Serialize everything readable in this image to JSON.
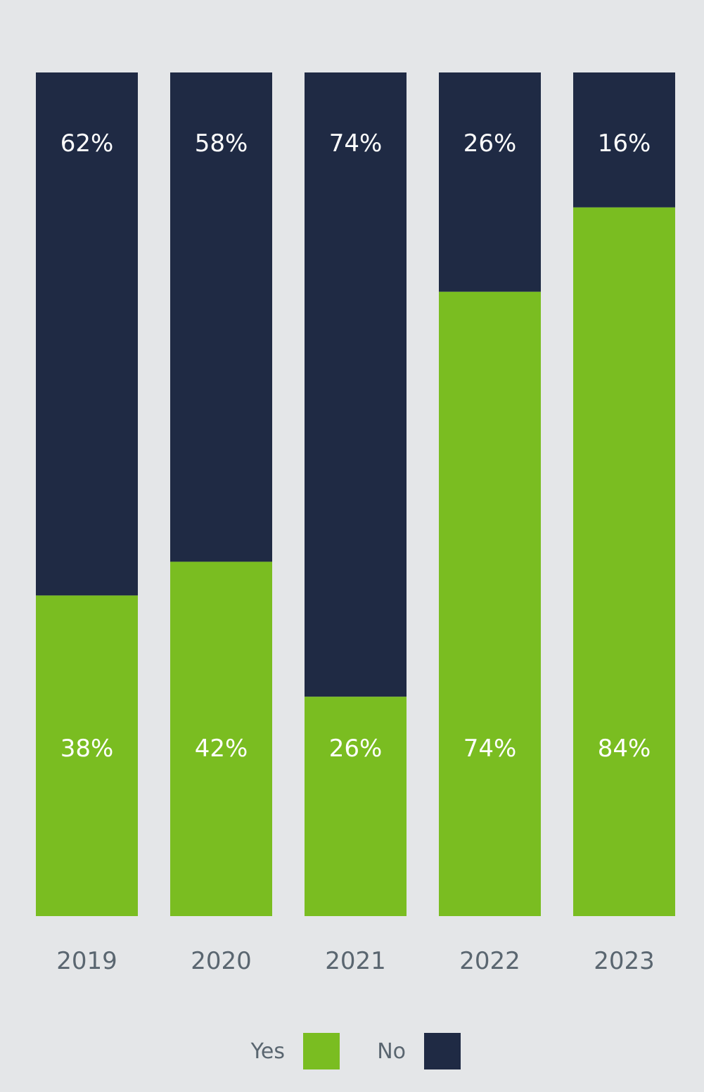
{
  "chart_data": {
    "type": "bar",
    "stacked": true,
    "categories": [
      "2019",
      "2020",
      "2021",
      "2022",
      "2023"
    ],
    "series": [
      {
        "name": "Yes",
        "color": "#7abd21",
        "values": [
          38,
          42,
          26,
          74,
          84
        ],
        "labels": [
          "38%",
          "42%",
          "26%",
          "74%",
          "84%"
        ]
      },
      {
        "name": "No",
        "color": "#1f2a44",
        "values": [
          62,
          58,
          74,
          26,
          16
        ],
        "labels": [
          "62%",
          "58%",
          "74%",
          "26%",
          "16%"
        ]
      }
    ],
    "ylim": [
      0,
      100
    ],
    "grid": false,
    "legend_position": "bottom-center"
  }
}
